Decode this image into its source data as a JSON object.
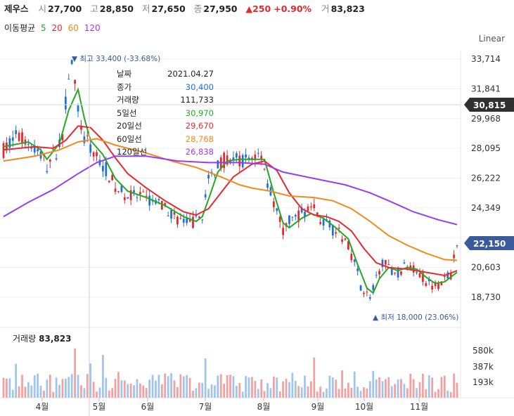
{
  "header": {
    "name": "제우스",
    "open_label": "시",
    "open": "27,700",
    "high_label": "고",
    "high": "28,850",
    "low_label": "저",
    "low": "27,650",
    "close_label": "종",
    "close": "27,950",
    "change": "▲250",
    "change_pct": "+0.90%",
    "volume_label": "거",
    "volume": "83,823"
  },
  "ma_bar": {
    "label": "이동평균",
    "periods": [
      "5",
      "20",
      "60",
      "120"
    ]
  },
  "scale_button": "Linear",
  "colors": {
    "up": "#e0282e",
    "down": "#1f6fd6",
    "ma5": "#22aa22",
    "ma20": "#e8282e",
    "ma60": "#f08a1c",
    "ma120": "#9a3cf0",
    "badge_dark": "#303030",
    "badge_blue": "#3a5a9c",
    "vol_up": "#f4a0a0",
    "vol_down": "#9fc4ee"
  },
  "tooltip": {
    "rows": [
      {
        "label": "날짜",
        "value": "2021.04.27",
        "color": "#222222"
      },
      {
        "label": "종가",
        "value": "30,400",
        "color": "#1f6fd6"
      },
      {
        "label": "거래량",
        "value": "111,733",
        "color": "#222222"
      },
      {
        "label": "5일선",
        "value": "30,970",
        "color": "#22aa22"
      },
      {
        "label": "20일선",
        "value": "29,670",
        "color": "#e8282e"
      },
      {
        "label": "60일선",
        "value": "28,768",
        "color": "#f08a1c"
      },
      {
        "label": "120일선",
        "value": "26,838",
        "color": "#9a3cf0"
      }
    ]
  },
  "annotations": {
    "high": "▼ 최고 33,400 (-33.68%)",
    "low": "▲ 최저 18,000 (23.06%)"
  },
  "price_badges": {
    "current_dark": "30,815",
    "current_blue": "22,150"
  },
  "volume_panel": {
    "label": "거래량",
    "value": "83,823",
    "ticks": [
      "580k",
      "387k",
      "193k"
    ]
  },
  "chart_data": {
    "type": "candlestick",
    "y_ticks": [
      33714,
      31841,
      29968,
      28095,
      26222,
      24349,
      22476,
      20603,
      18730
    ],
    "y_tick_labels": [
      "33,714",
      "31,841",
      "29,968",
      "28,095",
      "26,222",
      "24,349",
      "",
      "20,603",
      "18,730"
    ],
    "ylim": [
      17000,
      34800
    ],
    "x_labels": [
      "4월",
      "5월",
      "6월",
      "7월",
      "8월",
      "9월",
      "10월",
      "11월"
    ],
    "price_path": [
      [
        0,
        28000
      ],
      [
        4,
        28800
      ],
      [
        8,
        28500
      ],
      [
        12,
        27700
      ],
      [
        14,
        27000
      ],
      [
        17,
        27900
      ],
      [
        19,
        29000
      ],
      [
        21,
        32800
      ],
      [
        22,
        33400
      ],
      [
        24,
        30500
      ],
      [
        26,
        28600
      ],
      [
        28,
        28200
      ],
      [
        30,
        27600
      ],
      [
        33,
        26800
      ],
      [
        36,
        25600
      ],
      [
        40,
        25100
      ],
      [
        44,
        25000
      ],
      [
        48,
        24800
      ],
      [
        52,
        24300
      ],
      [
        56,
        23700
      ],
      [
        60,
        23300
      ],
      [
        62,
        23500
      ],
      [
        64,
        24000
      ],
      [
        66,
        26000
      ],
      [
        69,
        27200
      ],
      [
        72,
        27400
      ],
      [
        76,
        27300
      ],
      [
        80,
        27500
      ],
      [
        83,
        27800
      ],
      [
        85,
        26000
      ],
      [
        88,
        24000
      ],
      [
        90,
        22800
      ],
      [
        92,
        23500
      ],
      [
        96,
        24000
      ],
      [
        99,
        24500
      ],
      [
        103,
        23400
      ],
      [
        107,
        22900
      ],
      [
        110,
        22300
      ],
      [
        113,
        21000
      ],
      [
        115,
        19500
      ],
      [
        117,
        18900
      ],
      [
        118,
        18700
      ],
      [
        120,
        19800
      ],
      [
        122,
        21000
      ],
      [
        124,
        20500
      ],
      [
        127,
        20300
      ],
      [
        130,
        20700
      ],
      [
        133,
        20500
      ],
      [
        136,
        19700
      ],
      [
        139,
        19500
      ],
      [
        142,
        19800
      ],
      [
        144,
        20200
      ],
      [
        146,
        21900
      ]
    ],
    "series": [
      {
        "name": "5",
        "color": "#22aa22",
        "points": [
          [
            0,
            28200
          ],
          [
            8,
            28500
          ],
          [
            12,
            28000
          ],
          [
            14,
            27400
          ],
          [
            18,
            28400
          ],
          [
            21,
            30500
          ],
          [
            24,
            31800
          ],
          [
            26,
            30000
          ],
          [
            28,
            28600
          ],
          [
            32,
            27700
          ],
          [
            36,
            26200
          ],
          [
            40,
            25400
          ],
          [
            46,
            25000
          ],
          [
            52,
            24500
          ],
          [
            58,
            23800
          ],
          [
            62,
            23500
          ],
          [
            64,
            23800
          ],
          [
            66,
            24900
          ],
          [
            69,
            26600
          ],
          [
            72,
            27300
          ],
          [
            76,
            27400
          ],
          [
            80,
            27400
          ],
          [
            84,
            27400
          ],
          [
            87,
            25300
          ],
          [
            90,
            23400
          ],
          [
            92,
            23100
          ],
          [
            96,
            23700
          ],
          [
            99,
            24000
          ],
          [
            103,
            23700
          ],
          [
            107,
            23100
          ],
          [
            111,
            22400
          ],
          [
            114,
            20800
          ],
          [
            117,
            19300
          ],
          [
            119,
            19000
          ],
          [
            121,
            19900
          ],
          [
            124,
            20600
          ],
          [
            127,
            20400
          ],
          [
            130,
            20600
          ],
          [
            133,
            20500
          ],
          [
            136,
            20000
          ],
          [
            139,
            19600
          ],
          [
            142,
            19700
          ],
          [
            146,
            20300
          ]
        ]
      },
      {
        "name": "20",
        "color": "#e8282e",
        "points": [
          [
            0,
            28000
          ],
          [
            10,
            28200
          ],
          [
            16,
            28100
          ],
          [
            20,
            28600
          ],
          [
            24,
            29500
          ],
          [
            28,
            29400
          ],
          [
            32,
            28600
          ],
          [
            36,
            27500
          ],
          [
            40,
            26500
          ],
          [
            46,
            25600
          ],
          [
            52,
            24800
          ],
          [
            58,
            24100
          ],
          [
            62,
            23900
          ],
          [
            66,
            24300
          ],
          [
            70,
            25300
          ],
          [
            74,
            26300
          ],
          [
            80,
            27100
          ],
          [
            84,
            27300
          ],
          [
            88,
            26700
          ],
          [
            92,
            25300
          ],
          [
            96,
            24300
          ],
          [
            100,
            23900
          ],
          [
            104,
            23800
          ],
          [
            108,
            23500
          ],
          [
            112,
            22900
          ],
          [
            116,
            21800
          ],
          [
            120,
            20900
          ],
          [
            124,
            20600
          ],
          [
            130,
            20500
          ],
          [
            136,
            20300
          ],
          [
            142,
            20100
          ],
          [
            146,
            20400
          ]
        ]
      },
      {
        "name": "60",
        "color": "#f08a1c",
        "points": [
          [
            0,
            27300
          ],
          [
            10,
            27600
          ],
          [
            18,
            28000
          ],
          [
            24,
            28500
          ],
          [
            30,
            28700
          ],
          [
            36,
            28300
          ],
          [
            46,
            27800
          ],
          [
            54,
            27300
          ],
          [
            62,
            26900
          ],
          [
            70,
            26300
          ],
          [
            76,
            25800
          ],
          [
            80,
            25600
          ],
          [
            86,
            25400
          ],
          [
            92,
            25100
          ],
          [
            100,
            25000
          ],
          [
            106,
            24800
          ],
          [
            112,
            24300
          ],
          [
            118,
            23500
          ],
          [
            124,
            22600
          ],
          [
            130,
            22000
          ],
          [
            136,
            21500
          ],
          [
            142,
            21100
          ],
          [
            146,
            21050
          ]
        ]
      },
      {
        "name": "120",
        "color": "#9a3cf0",
        "points": [
          [
            0,
            23800
          ],
          [
            8,
            24700
          ],
          [
            16,
            25500
          ],
          [
            24,
            26500
          ],
          [
            30,
            27200
          ],
          [
            36,
            27600
          ],
          [
            46,
            27600
          ],
          [
            56,
            27300
          ],
          [
            66,
            27200
          ],
          [
            76,
            27200
          ],
          [
            84,
            27100
          ],
          [
            90,
            26600
          ],
          [
            100,
            26200
          ],
          [
            110,
            25800
          ],
          [
            118,
            25300
          ],
          [
            124,
            24800
          ],
          [
            132,
            24100
          ],
          [
            140,
            23600
          ],
          [
            146,
            23300
          ]
        ]
      }
    ]
  }
}
